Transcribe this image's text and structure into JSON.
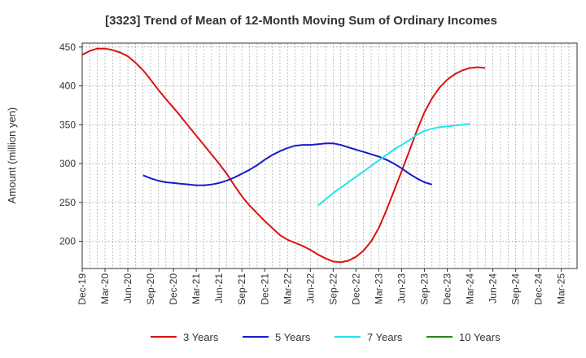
{
  "chart_data": {
    "type": "line",
    "title": "[3323]  Trend of Mean of 12-Month Moving Sum of Ordinary Incomes",
    "xlabel": "",
    "ylabel": "Amount (million yen)",
    "ylim": [
      165,
      455
    ],
    "yticks": [
      200,
      250,
      300,
      350,
      400,
      450
    ],
    "grid": true,
    "legend_position": "bottom",
    "x_months": 64,
    "x_ticks": [
      {
        "label": "Dec-19",
        "index": 0
      },
      {
        "label": "Mar-20",
        "index": 3
      },
      {
        "label": "Jun-20",
        "index": 6
      },
      {
        "label": "Sep-20",
        "index": 9
      },
      {
        "label": "Dec-20",
        "index": 12
      },
      {
        "label": "Mar-21",
        "index": 15
      },
      {
        "label": "Jun-21",
        "index": 18
      },
      {
        "label": "Sep-21",
        "index": 21
      },
      {
        "label": "Dec-21",
        "index": 24
      },
      {
        "label": "Mar-22",
        "index": 27
      },
      {
        "label": "Jun-22",
        "index": 30
      },
      {
        "label": "Sep-22",
        "index": 33
      },
      {
        "label": "Dec-22",
        "index": 36
      },
      {
        "label": "Mar-23",
        "index": 39
      },
      {
        "label": "Jun-23",
        "index": 42
      },
      {
        "label": "Sep-23",
        "index": 45
      },
      {
        "label": "Dec-23",
        "index": 48
      },
      {
        "label": "Mar-24",
        "index": 51
      },
      {
        "label": "Jun-24",
        "index": 54
      },
      {
        "label": "Sep-24",
        "index": 57
      },
      {
        "label": "Dec-24",
        "index": 60
      },
      {
        "label": "Mar-25",
        "index": 63
      }
    ],
    "series": [
      {
        "name": "3 Years",
        "color": "#dd1111",
        "points": [
          [
            0,
            440
          ],
          [
            1,
            445
          ],
          [
            2,
            448
          ],
          [
            3,
            448
          ],
          [
            4,
            446
          ],
          [
            5,
            443
          ],
          [
            6,
            438
          ],
          [
            7,
            430
          ],
          [
            8,
            420
          ],
          [
            9,
            408
          ],
          [
            10,
            395
          ],
          [
            11,
            383
          ],
          [
            12,
            372
          ],
          [
            13,
            360
          ],
          [
            14,
            348
          ],
          [
            15,
            336
          ],
          [
            16,
            324
          ],
          [
            17,
            312
          ],
          [
            18,
            300
          ],
          [
            19,
            287
          ],
          [
            20,
            272
          ],
          [
            21,
            258
          ],
          [
            22,
            246
          ],
          [
            23,
            236
          ],
          [
            24,
            226
          ],
          [
            25,
            217
          ],
          [
            26,
            208
          ],
          [
            27,
            202
          ],
          [
            28,
            198
          ],
          [
            29,
            194
          ],
          [
            30,
            189
          ],
          [
            31,
            183
          ],
          [
            32,
            178
          ],
          [
            33,
            174
          ],
          [
            34,
            173
          ],
          [
            35,
            175
          ],
          [
            36,
            180
          ],
          [
            37,
            188
          ],
          [
            38,
            200
          ],
          [
            39,
            217
          ],
          [
            40,
            240
          ],
          [
            41,
            265
          ],
          [
            42,
            290
          ],
          [
            43,
            316
          ],
          [
            44,
            342
          ],
          [
            45,
            366
          ],
          [
            46,
            384
          ],
          [
            47,
            398
          ],
          [
            48,
            408
          ],
          [
            49,
            415
          ],
          [
            50,
            420
          ],
          [
            51,
            423
          ],
          [
            52,
            424
          ],
          [
            53,
            423
          ]
        ]
      },
      {
        "name": "5 Years",
        "color": "#1a1acc",
        "points": [
          [
            8,
            285
          ],
          [
            9,
            281
          ],
          [
            10,
            278
          ],
          [
            11,
            276
          ],
          [
            12,
            275
          ],
          [
            13,
            274
          ],
          [
            14,
            273
          ],
          [
            15,
            272
          ],
          [
            16,
            272
          ],
          [
            17,
            273
          ],
          [
            18,
            275
          ],
          [
            19,
            278
          ],
          [
            20,
            282
          ],
          [
            21,
            287
          ],
          [
            22,
            292
          ],
          [
            23,
            298
          ],
          [
            24,
            305
          ],
          [
            25,
            311
          ],
          [
            26,
            316
          ],
          [
            27,
            320
          ],
          [
            28,
            323
          ],
          [
            29,
            324
          ],
          [
            30,
            324
          ],
          [
            31,
            325
          ],
          [
            32,
            326
          ],
          [
            33,
            326
          ],
          [
            34,
            324
          ],
          [
            35,
            321
          ],
          [
            36,
            318
          ],
          [
            37,
            315
          ],
          [
            38,
            312
          ],
          [
            39,
            309
          ],
          [
            40,
            305
          ],
          [
            41,
            300
          ],
          [
            42,
            294
          ],
          [
            43,
            287
          ],
          [
            44,
            281
          ],
          [
            45,
            276
          ],
          [
            46,
            273
          ]
        ]
      },
      {
        "name": "7 Years",
        "color": "#22e5ee",
        "points": [
          [
            31,
            246
          ],
          [
            32,
            254
          ],
          [
            33,
            262
          ],
          [
            34,
            269
          ],
          [
            35,
            276
          ],
          [
            36,
            283
          ],
          [
            37,
            290
          ],
          [
            38,
            297
          ],
          [
            39,
            304
          ],
          [
            40,
            311
          ],
          [
            41,
            318
          ],
          [
            42,
            324
          ],
          [
            43,
            330
          ],
          [
            44,
            337
          ],
          [
            45,
            342
          ],
          [
            46,
            345
          ],
          [
            47,
            347
          ],
          [
            48,
            348
          ],
          [
            49,
            349
          ],
          [
            50,
            350
          ],
          [
            51,
            351
          ]
        ]
      },
      {
        "name": "10 Years",
        "color": "#228822",
        "points": []
      }
    ]
  }
}
